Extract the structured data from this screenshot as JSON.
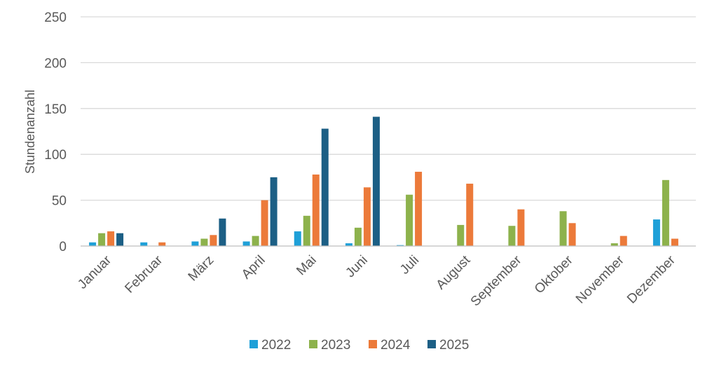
{
  "chart_data": {
    "type": "bar",
    "title": "",
    "xlabel": "",
    "ylabel": "Stundenanzahl",
    "ylim": [
      0,
      250
    ],
    "yticks": [
      0,
      50,
      100,
      150,
      200,
      250
    ],
    "grid": "horizontal",
    "legend_position": "bottom",
    "categories": [
      "Januar",
      "Februar",
      "März",
      "April",
      "Mai",
      "Juni",
      "Juli",
      "August",
      "September",
      "Oktober",
      "November",
      "Dezember"
    ],
    "series": [
      {
        "name": "2022",
        "color": "#1fa0d8",
        "values": [
          4,
          4,
          5,
          5,
          16,
          3,
          1,
          0,
          0,
          0,
          0,
          29
        ]
      },
      {
        "name": "2023",
        "color": "#8db24c",
        "values": [
          14,
          0,
          8,
          11,
          33,
          20,
          56,
          23,
          22,
          38,
          3,
          72
        ]
      },
      {
        "name": "2024",
        "color": "#ec7a3a",
        "values": [
          16,
          4,
          12,
          50,
          78,
          64,
          81,
          68,
          40,
          25,
          11,
          8
        ]
      },
      {
        "name": "2025",
        "color": "#1c5f85",
        "values": [
          14,
          0,
          30,
          75,
          128,
          141,
          0,
          0,
          0,
          0,
          0,
          0
        ]
      }
    ]
  }
}
